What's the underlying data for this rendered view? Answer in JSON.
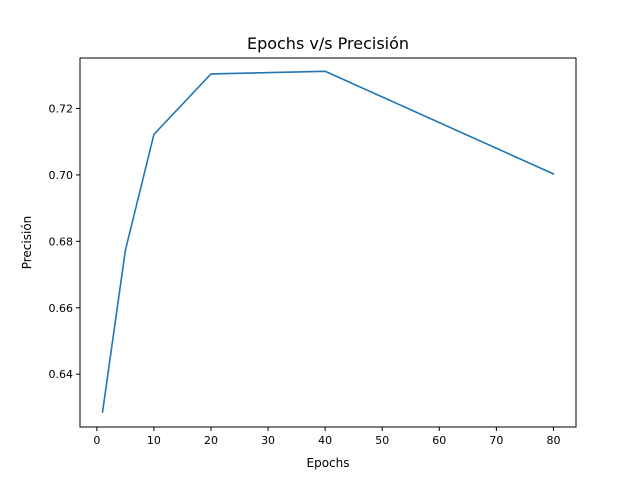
{
  "chart_data": {
    "type": "line",
    "title": "Epochs v/s Precisión",
    "xlabel": "Epochs",
    "ylabel": "Precisión",
    "x": [
      1,
      5,
      10,
      20,
      40,
      80
    ],
    "series": [
      {
        "values": [
          0.6286,
          0.6773,
          0.7122,
          0.7304,
          0.7312,
          0.7003
        ],
        "color": "#1f77b4"
      }
    ],
    "xlim": [
      -2.95,
      83.95
    ],
    "ylim": [
      0.6241,
      0.7352
    ],
    "xticks": [
      0,
      10,
      20,
      30,
      40,
      50,
      60,
      70,
      80
    ],
    "xtick_labels": [
      "0",
      "10",
      "20",
      "30",
      "40",
      "50",
      "60",
      "70",
      "80"
    ],
    "yticks": [
      0.64,
      0.66,
      0.68,
      0.7,
      0.72
    ],
    "ytick_labels": [
      "0.64",
      "0.66",
      "0.68",
      "0.70",
      "0.72"
    ],
    "grid": false,
    "legend": false
  }
}
